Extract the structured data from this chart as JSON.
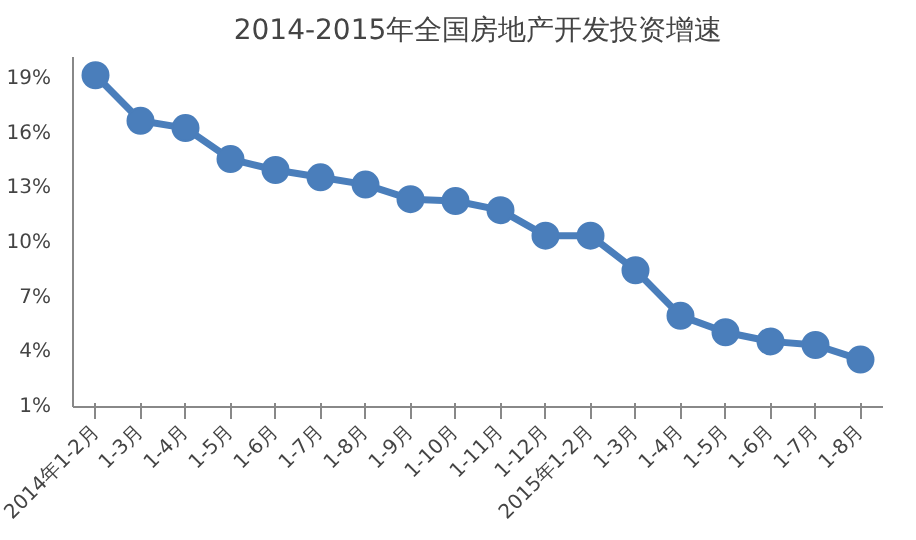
{
  "chart_data": {
    "type": "line",
    "title": "2014-2015年全国房地产开发投资增速",
    "categories": [
      "2014年1-2月",
      "1-3月",
      "1-4月",
      "1-5月",
      "1-6月",
      "1-7月",
      "1-8月",
      "1-9月",
      "1-10月",
      "1-11月",
      "1-12月",
      "2015年1-2月",
      "1-3月",
      "1-4月",
      "1-5月",
      "1-6月",
      "1-7月",
      "1-8月"
    ],
    "series": [
      {
        "color": "#4a7ebb",
        "values": [
          19.2,
          16.7,
          16.3,
          14.6,
          14.0,
          13.6,
          13.2,
          12.4,
          12.3,
          11.8,
          10.4,
          10.4,
          8.5,
          6.0,
          5.1,
          4.6,
          4.4,
          3.6
        ]
      }
    ],
    "ylim": [
      1,
      20.2
    ],
    "yticks": [
      {
        "value": 1,
        "label": "1%"
      },
      {
        "value": 4,
        "label": "4%"
      },
      {
        "value": 7,
        "label": "7%"
      },
      {
        "value": 10,
        "label": "10%"
      },
      {
        "value": 13,
        "label": "13%"
      },
      {
        "value": 16,
        "label": "16%"
      },
      {
        "value": 19,
        "label": "19%"
      }
    ],
    "marker": "circle",
    "line_style": "solid"
  }
}
